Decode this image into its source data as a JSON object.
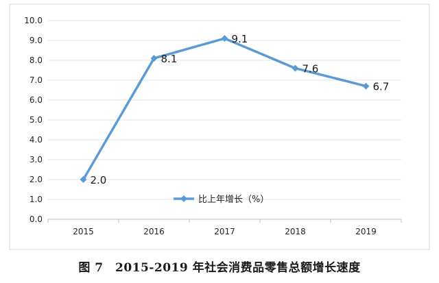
{
  "chart_data": {
    "type": "line",
    "categories": [
      "2015",
      "2016",
      "2017",
      "2018",
      "2019"
    ],
    "series": [
      {
        "name": "比上年增长（%）",
        "values": [
          2.0,
          8.1,
          9.1,
          7.6,
          6.7
        ]
      }
    ],
    "data_labels": [
      "2.0",
      "8.1",
      "9.1",
      "7.6",
      "6.7"
    ],
    "yticks": [
      "0.0",
      "1.0",
      "2.0",
      "3.0",
      "4.0",
      "5.0",
      "6.0",
      "7.0",
      "8.0",
      "9.0",
      "10.0"
    ],
    "ylim": [
      0,
      10
    ],
    "legend_position": "center",
    "color": "#5b9bd5"
  },
  "caption": "图 7　2015-2019 年社会消费品零售总额增长速度"
}
